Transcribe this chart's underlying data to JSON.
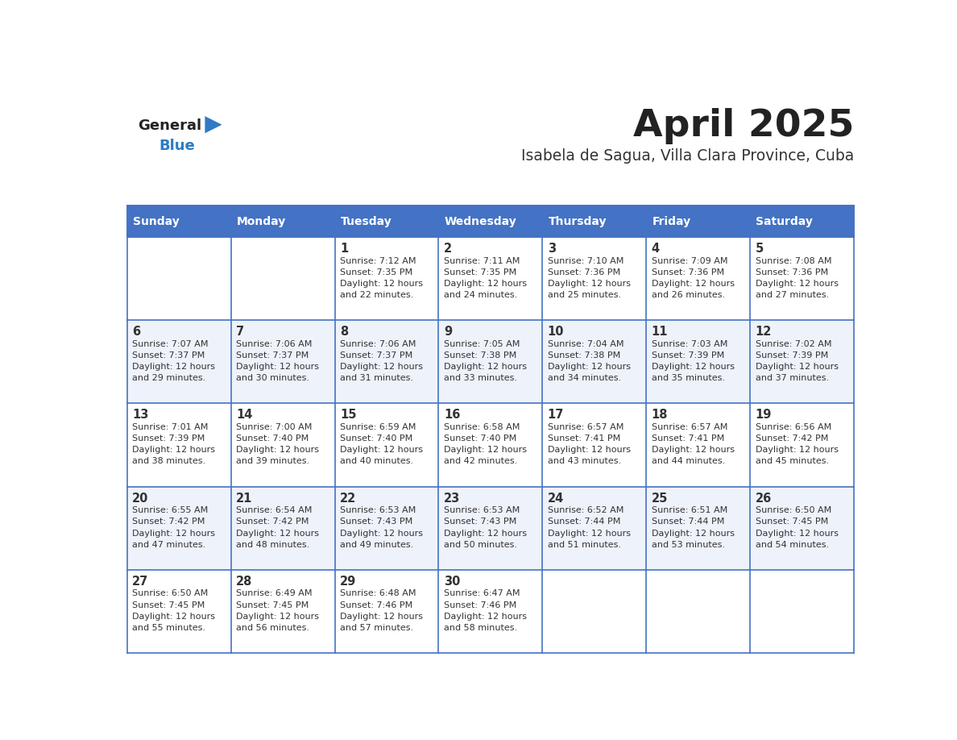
{
  "title": "April 2025",
  "subtitle": "Isabela de Sagua, Villa Clara Province, Cuba",
  "days_of_week": [
    "Sunday",
    "Monday",
    "Tuesday",
    "Wednesday",
    "Thursday",
    "Friday",
    "Saturday"
  ],
  "header_bg": "#4472C4",
  "header_text": "#FFFFFF",
  "border_color": "#4472C4",
  "text_color": "#333333",
  "title_color": "#222222",
  "subtitle_color": "#333333",
  "logo_general_color": "#222222",
  "logo_blue_color": "#2E7BC4",
  "cell_bg_white": "#FFFFFF",
  "cell_bg_light": "#EEF2FA",
  "weeks": [
    [
      {
        "day": null,
        "sunrise": null,
        "sunset": null,
        "daylight": null
      },
      {
        "day": null,
        "sunrise": null,
        "sunset": null,
        "daylight": null
      },
      {
        "day": 1,
        "sunrise": "7:12 AM",
        "sunset": "7:35 PM",
        "daylight": "12 hours and 22 minutes."
      },
      {
        "day": 2,
        "sunrise": "7:11 AM",
        "sunset": "7:35 PM",
        "daylight": "12 hours and 24 minutes."
      },
      {
        "day": 3,
        "sunrise": "7:10 AM",
        "sunset": "7:36 PM",
        "daylight": "12 hours and 25 minutes."
      },
      {
        "day": 4,
        "sunrise": "7:09 AM",
        "sunset": "7:36 PM",
        "daylight": "12 hours and 26 minutes."
      },
      {
        "day": 5,
        "sunrise": "7:08 AM",
        "sunset": "7:36 PM",
        "daylight": "12 hours and 27 minutes."
      }
    ],
    [
      {
        "day": 6,
        "sunrise": "7:07 AM",
        "sunset": "7:37 PM",
        "daylight": "12 hours and 29 minutes."
      },
      {
        "day": 7,
        "sunrise": "7:06 AM",
        "sunset": "7:37 PM",
        "daylight": "12 hours and 30 minutes."
      },
      {
        "day": 8,
        "sunrise": "7:06 AM",
        "sunset": "7:37 PM",
        "daylight": "12 hours and 31 minutes."
      },
      {
        "day": 9,
        "sunrise": "7:05 AM",
        "sunset": "7:38 PM",
        "daylight": "12 hours and 33 minutes."
      },
      {
        "day": 10,
        "sunrise": "7:04 AM",
        "sunset": "7:38 PM",
        "daylight": "12 hours and 34 minutes."
      },
      {
        "day": 11,
        "sunrise": "7:03 AM",
        "sunset": "7:39 PM",
        "daylight": "12 hours and 35 minutes."
      },
      {
        "day": 12,
        "sunrise": "7:02 AM",
        "sunset": "7:39 PM",
        "daylight": "12 hours and 37 minutes."
      }
    ],
    [
      {
        "day": 13,
        "sunrise": "7:01 AM",
        "sunset": "7:39 PM",
        "daylight": "12 hours and 38 minutes."
      },
      {
        "day": 14,
        "sunrise": "7:00 AM",
        "sunset": "7:40 PM",
        "daylight": "12 hours and 39 minutes."
      },
      {
        "day": 15,
        "sunrise": "6:59 AM",
        "sunset": "7:40 PM",
        "daylight": "12 hours and 40 minutes."
      },
      {
        "day": 16,
        "sunrise": "6:58 AM",
        "sunset": "7:40 PM",
        "daylight": "12 hours and 42 minutes."
      },
      {
        "day": 17,
        "sunrise": "6:57 AM",
        "sunset": "7:41 PM",
        "daylight": "12 hours and 43 minutes."
      },
      {
        "day": 18,
        "sunrise": "6:57 AM",
        "sunset": "7:41 PM",
        "daylight": "12 hours and 44 minutes."
      },
      {
        "day": 19,
        "sunrise": "6:56 AM",
        "sunset": "7:42 PM",
        "daylight": "12 hours and 45 minutes."
      }
    ],
    [
      {
        "day": 20,
        "sunrise": "6:55 AM",
        "sunset": "7:42 PM",
        "daylight": "12 hours and 47 minutes."
      },
      {
        "day": 21,
        "sunrise": "6:54 AM",
        "sunset": "7:42 PM",
        "daylight": "12 hours and 48 minutes."
      },
      {
        "day": 22,
        "sunrise": "6:53 AM",
        "sunset": "7:43 PM",
        "daylight": "12 hours and 49 minutes."
      },
      {
        "day": 23,
        "sunrise": "6:53 AM",
        "sunset": "7:43 PM",
        "daylight": "12 hours and 50 minutes."
      },
      {
        "day": 24,
        "sunrise": "6:52 AM",
        "sunset": "7:44 PM",
        "daylight": "12 hours and 51 minutes."
      },
      {
        "day": 25,
        "sunrise": "6:51 AM",
        "sunset": "7:44 PM",
        "daylight": "12 hours and 53 minutes."
      },
      {
        "day": 26,
        "sunrise": "6:50 AM",
        "sunset": "7:45 PM",
        "daylight": "12 hours and 54 minutes."
      }
    ],
    [
      {
        "day": 27,
        "sunrise": "6:50 AM",
        "sunset": "7:45 PM",
        "daylight": "12 hours and 55 minutes."
      },
      {
        "day": 28,
        "sunrise": "6:49 AM",
        "sunset": "7:45 PM",
        "daylight": "12 hours and 56 minutes."
      },
      {
        "day": 29,
        "sunrise": "6:48 AM",
        "sunset": "7:46 PM",
        "daylight": "12 hours and 57 minutes."
      },
      {
        "day": 30,
        "sunrise": "6:47 AM",
        "sunset": "7:46 PM",
        "daylight": "12 hours and 58 minutes."
      },
      {
        "day": null,
        "sunrise": null,
        "sunset": null,
        "daylight": null
      },
      {
        "day": null,
        "sunrise": null,
        "sunset": null,
        "daylight": null
      },
      {
        "day": null,
        "sunrise": null,
        "sunset": null,
        "daylight": null
      }
    ]
  ]
}
